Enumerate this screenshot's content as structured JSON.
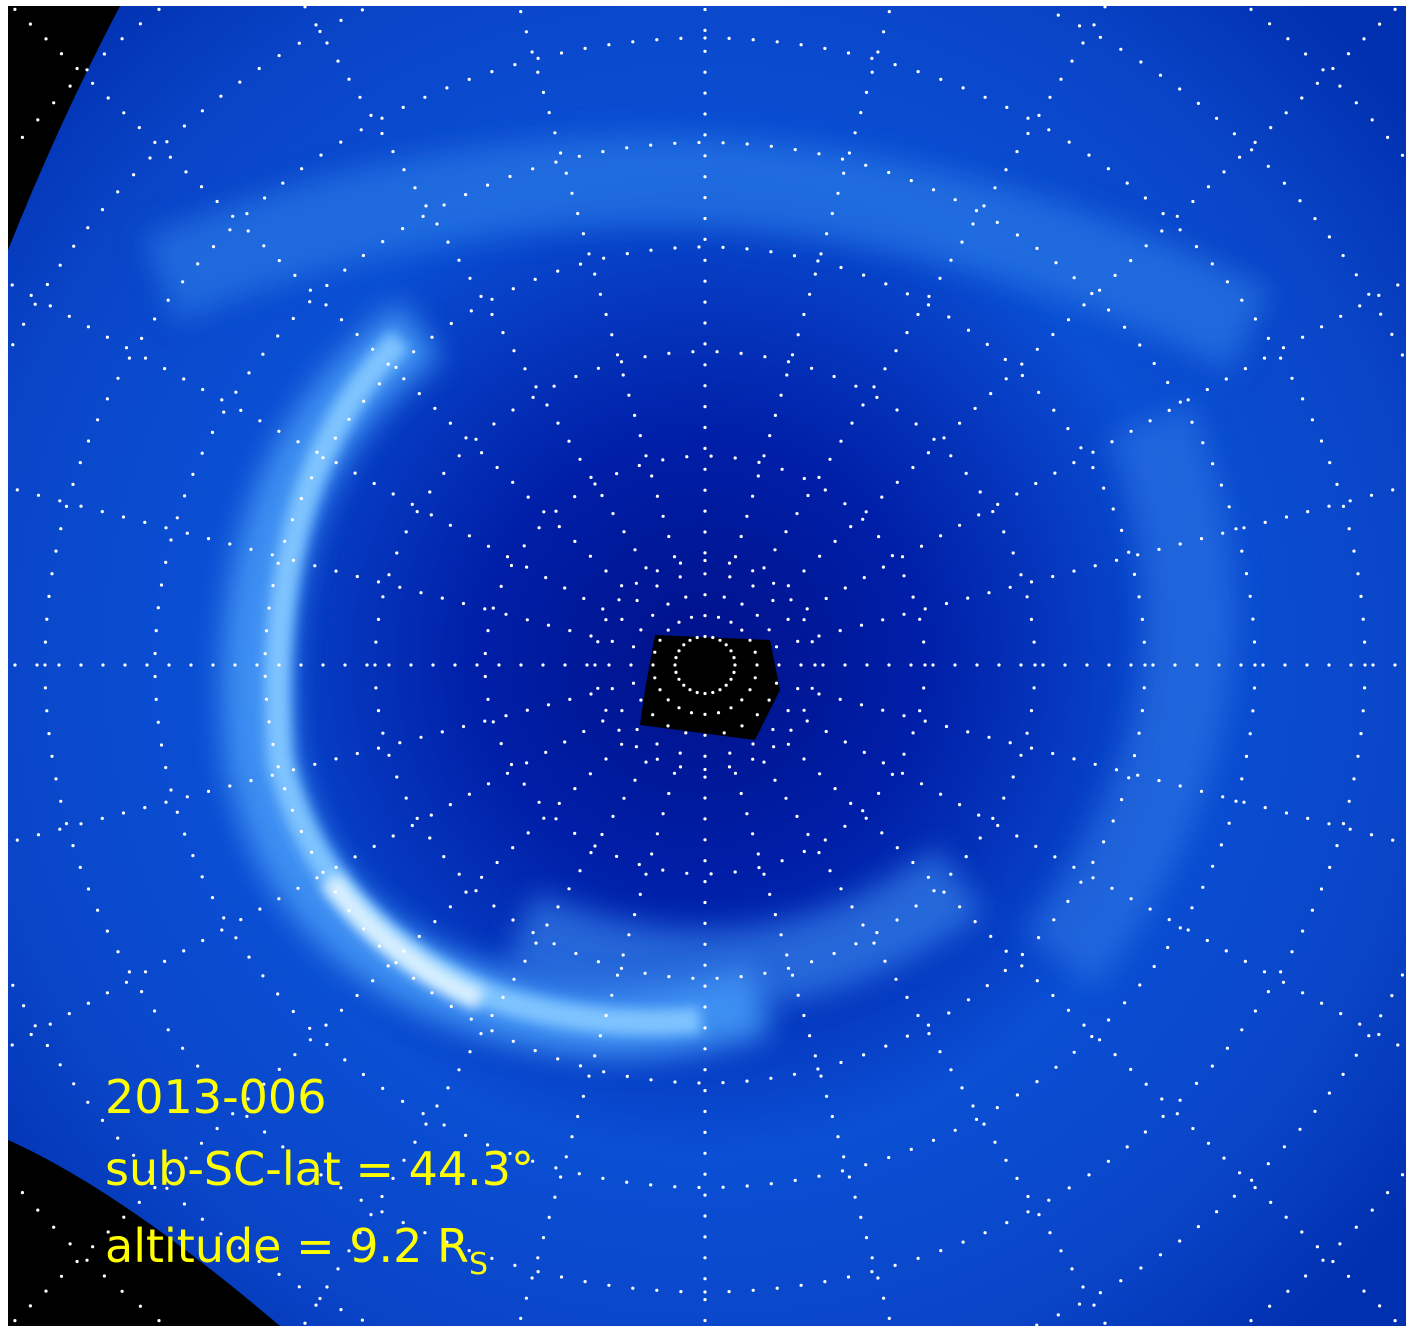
{
  "labels": {
    "date": "2013-006",
    "latitude": "sub-SC-lat = 44.3°",
    "altitude": "altitude = 9.2 R",
    "altitude_subscript": "S"
  }
}
